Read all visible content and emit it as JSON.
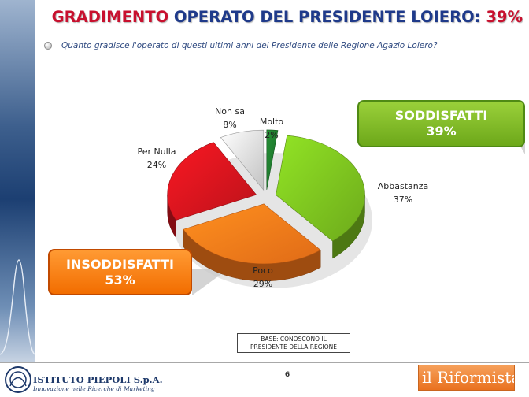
{
  "title": {
    "part1": "GRADIMENTO",
    "part2": "OPERATO DEL PRESIDENTE LOIERO:",
    "part3": "39%"
  },
  "question": "Quanto gradisce l'operato di questi ultimi anni del Presidente delle Regione Agazio Loiero?",
  "chart_data": {
    "type": "pie",
    "title": "",
    "three_d": true,
    "slices": [
      {
        "label": "Molto",
        "value": 2,
        "value_label": "2%",
        "color": "#1f7a2e"
      },
      {
        "label": "Abbastanza",
        "value": 37,
        "value_label": "37%",
        "color": "#7cc11f"
      },
      {
        "label": "Poco",
        "value": 29,
        "value_label": "29%",
        "color": "#ff7a1a"
      },
      {
        "label": "Per Nulla",
        "value": 24,
        "value_label": "24%",
        "color": "#d4141e"
      },
      {
        "label": "Non sa",
        "value": 8,
        "value_label": "8%",
        "color": "#dcdcdc"
      }
    ]
  },
  "callouts": {
    "satisfied": {
      "label": "SODDISFATTI",
      "value": "39%",
      "color": "#7cc11f"
    },
    "dissatisfied": {
      "label": "INSODDISFATTI",
      "value": "53%",
      "color": "#f57c00"
    }
  },
  "base_note": {
    "line1": "BASE: CONOSCONO IL",
    "line2": "PRESIDENTE DELLA REGIONE"
  },
  "page_number": "6",
  "footer": {
    "left_logo_name": "ISTITUTO PIEPOLI S.p.A.",
    "left_logo_tagline": "Innovazione nelle Ricerche di Marketing",
    "right_logo_text": "il Riformista",
    "right_logo_icon": "newspaper-logo-icon"
  },
  "colors": {
    "title_red": "#c8102e",
    "title_blue": "#1f3a8a",
    "accent_green": "#7cc11f",
    "accent_orange": "#f57c00"
  }
}
